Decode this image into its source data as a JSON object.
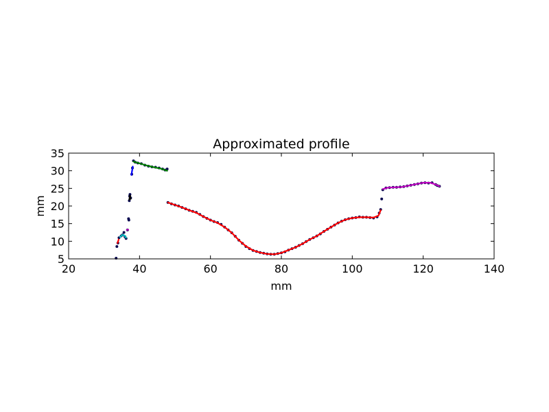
{
  "chart_data": {
    "type": "scatter",
    "title": "Approximated profile",
    "xlabel": "mm",
    "ylabel": "mm",
    "xlim": [
      20,
      140
    ],
    "ylim": [
      5,
      35
    ],
    "xticks": [
      "20",
      "40",
      "60",
      "80",
      "100",
      "120",
      "140"
    ],
    "yticks": [
      "5",
      "10",
      "15",
      "20",
      "25",
      "30",
      "35"
    ],
    "grid": false,
    "legend": "none",
    "colors": {
      "points": "#0a0a50",
      "fit_red": "#ff0000",
      "fit_blue": "#0000ff",
      "fit_green": "#008000",
      "fit_black": "#000000",
      "fit_cyan": "#00bfbf",
      "fit_magenta": "#bf00bf"
    },
    "measured_points": [
      [
        33.4,
        5.2
      ],
      [
        33.6,
        8.5
      ],
      [
        33.9,
        9.5
      ],
      [
        34.2,
        11.0
      ],
      [
        34.8,
        11.5
      ],
      [
        35.2,
        11.8
      ],
      [
        35.6,
        12.5
      ],
      [
        35.9,
        11.3
      ],
      [
        36.2,
        10.8
      ],
      [
        36.6,
        13.2
      ],
      [
        36.9,
        16.4
      ],
      [
        37.0,
        16.0
      ],
      [
        37.1,
        21.5
      ],
      [
        37.2,
        22.8
      ],
      [
        37.3,
        23.3
      ],
      [
        37.5,
        22.3
      ],
      [
        37.8,
        29.0
      ],
      [
        38.0,
        30.8
      ],
      [
        38.3,
        32.8
      ],
      [
        38.8,
        32.4
      ],
      [
        39.5,
        32.2
      ],
      [
        40.5,
        32.0
      ],
      [
        41.5,
        31.6
      ],
      [
        42.5,
        31.3
      ],
      [
        43.5,
        31.1
      ],
      [
        44.5,
        31.0
      ],
      [
        45.5,
        30.8
      ],
      [
        46.5,
        30.5
      ],
      [
        47.2,
        30.2
      ],
      [
        47.8,
        30.5
      ],
      [
        48.0,
        21.0
      ],
      [
        49.0,
        20.6
      ],
      [
        50.0,
        20.3
      ],
      [
        51.0,
        20.0
      ],
      [
        52.0,
        19.6
      ],
      [
        53.0,
        19.2
      ],
      [
        54.0,
        18.8
      ],
      [
        55.0,
        18.5
      ],
      [
        56.0,
        18.2
      ],
      [
        57.0,
        17.6
      ],
      [
        58.0,
        17.0
      ],
      [
        59.0,
        16.5
      ],
      [
        60.0,
        16.0
      ],
      [
        61.0,
        15.6
      ],
      [
        62.0,
        15.3
      ],
      [
        63.0,
        14.8
      ],
      [
        64.0,
        14.0
      ],
      [
        65.0,
        13.2
      ],
      [
        66.0,
        12.4
      ],
      [
        67.0,
        11.4
      ],
      [
        68.0,
        10.3
      ],
      [
        69.0,
        9.4
      ],
      [
        70.0,
        8.5
      ],
      [
        71.0,
        7.9
      ],
      [
        72.0,
        7.4
      ],
      [
        73.0,
        7.1
      ],
      [
        74.0,
        6.8
      ],
      [
        75.0,
        6.6
      ],
      [
        76.0,
        6.4
      ],
      [
        77.0,
        6.3
      ],
      [
        78.0,
        6.3
      ],
      [
        79.0,
        6.5
      ],
      [
        80.0,
        6.7
      ],
      [
        81.0,
        7.0
      ],
      [
        82.0,
        7.5
      ],
      [
        83.0,
        7.9
      ],
      [
        84.0,
        8.3
      ],
      [
        85.0,
        8.8
      ],
      [
        86.0,
        9.3
      ],
      [
        87.0,
        9.9
      ],
      [
        88.0,
        10.5
      ],
      [
        89.0,
        11.0
      ],
      [
        90.0,
        11.5
      ],
      [
        91.0,
        12.1
      ],
      [
        92.0,
        12.8
      ],
      [
        93.0,
        13.4
      ],
      [
        94.0,
        14.0
      ],
      [
        95.0,
        14.6
      ],
      [
        96.0,
        15.2
      ],
      [
        97.0,
        15.7
      ],
      [
        98.0,
        16.1
      ],
      [
        99.0,
        16.4
      ],
      [
        100.0,
        16.6
      ],
      [
        101.0,
        16.7
      ],
      [
        102.0,
        16.9
      ],
      [
        103.0,
        16.8
      ],
      [
        104.0,
        16.8
      ],
      [
        105.0,
        16.7
      ],
      [
        106.0,
        16.6
      ],
      [
        107.0,
        16.9
      ],
      [
        107.6,
        18.0
      ],
      [
        108.0,
        19.0
      ],
      [
        108.3,
        22.0
      ],
      [
        108.6,
        24.6
      ],
      [
        109.5,
        25.1
      ],
      [
        110.5,
        25.2
      ],
      [
        111.5,
        25.3
      ],
      [
        112.5,
        25.3
      ],
      [
        113.5,
        25.4
      ],
      [
        114.5,
        25.5
      ],
      [
        115.5,
        25.7
      ],
      [
        116.5,
        25.9
      ],
      [
        117.5,
        26.1
      ],
      [
        118.5,
        26.3
      ],
      [
        119.5,
        26.5
      ],
      [
        120.5,
        26.6
      ],
      [
        121.5,
        26.5
      ],
      [
        122.5,
        26.6
      ],
      [
        123.5,
        26.1
      ],
      [
        124.0,
        25.8
      ],
      [
        124.6,
        25.6
      ]
    ],
    "fitted_segments": [
      {
        "color": "#00bfbf",
        "points": [
          [
            34.5,
            11.2
          ],
          [
            35.2,
            11.8
          ],
          [
            35.8,
            11.6
          ],
          [
            36.2,
            11.0
          ]
        ]
      },
      {
        "color": "#ff0000",
        "points": [
          [
            33.8,
            9.5
          ],
          [
            34.1,
            10.5
          ]
        ]
      },
      {
        "color": "#bf00bf",
        "points": [
          [
            36.4,
            13.2
          ],
          [
            36.8,
            13.3
          ]
        ]
      },
      {
        "color": "#000000",
        "points": [
          [
            37.1,
            21.8
          ],
          [
            37.3,
            23.0
          ],
          [
            37.5,
            22.0
          ]
        ]
      },
      {
        "color": "#0000ff",
        "points": [
          [
            37.7,
            28.8
          ],
          [
            38.1,
            31.2
          ]
        ]
      },
      {
        "color": "#008000",
        "points": [
          [
            38.3,
            32.6
          ],
          [
            40.0,
            32.1
          ],
          [
            42.0,
            31.5
          ],
          [
            44.0,
            31.0
          ],
          [
            46.0,
            30.6
          ],
          [
            47.8,
            30.0
          ]
        ]
      },
      {
        "color": "#ff0000",
        "points": [
          [
            48.0,
            21.0
          ],
          [
            50.0,
            20.3
          ],
          [
            52.0,
            19.6
          ],
          [
            54.0,
            18.8
          ],
          [
            56.0,
            18.1
          ],
          [
            58.0,
            17.0
          ],
          [
            60.0,
            16.0
          ],
          [
            62.0,
            15.2
          ],
          [
            64.0,
            14.0
          ],
          [
            66.0,
            12.4
          ],
          [
            68.0,
            10.3
          ],
          [
            70.0,
            8.6
          ],
          [
            72.0,
            7.4
          ],
          [
            74.0,
            6.8
          ],
          [
            76.0,
            6.4
          ],
          [
            78.0,
            6.3
          ],
          [
            80.0,
            6.7
          ],
          [
            82.0,
            7.5
          ],
          [
            84.0,
            8.3
          ],
          [
            86.0,
            9.3
          ],
          [
            88.0,
            10.5
          ],
          [
            90.0,
            11.5
          ],
          [
            92.0,
            12.8
          ],
          [
            94.0,
            14.0
          ],
          [
            96.0,
            15.2
          ],
          [
            98.0,
            16.1
          ],
          [
            100.0,
            16.6
          ],
          [
            102.0,
            16.8
          ],
          [
            104.0,
            16.8
          ],
          [
            106.0,
            16.7
          ],
          [
            107.4,
            17.3
          ],
          [
            108.0,
            18.8
          ]
        ]
      },
      {
        "color": "#bf00bf",
        "points": [
          [
            108.6,
            24.8
          ],
          [
            110.0,
            25.2
          ],
          [
            112.0,
            25.3
          ],
          [
            114.0,
            25.4
          ],
          [
            116.0,
            25.8
          ],
          [
            118.0,
            26.2
          ],
          [
            120.0,
            26.6
          ],
          [
            122.0,
            26.6
          ],
          [
            123.5,
            26.1
          ],
          [
            124.6,
            25.6
          ]
        ]
      }
    ]
  }
}
